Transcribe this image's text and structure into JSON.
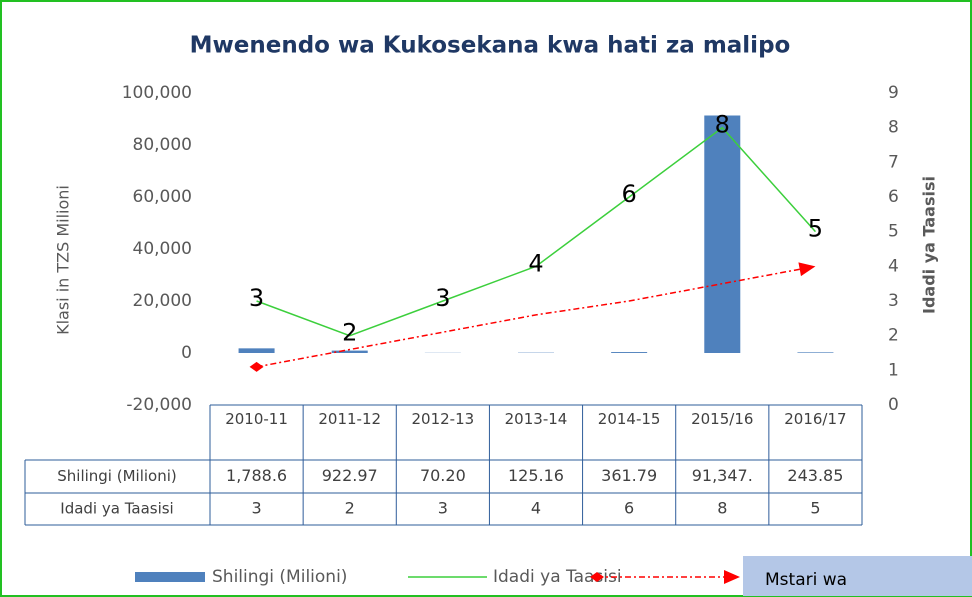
{
  "chart_data": {
    "type": "bar_line",
    "title": "Mwenendo wa Kukosekana kwa hati za malipo",
    "y_label": "Klasi in TZS Milioni",
    "y2_label": "Idadi ya Taasisi",
    "categories": [
      "2010-11",
      "2011-12",
      "2012-13",
      "2013-14",
      "2014-15",
      "2015/16",
      "2016/17"
    ],
    "series": [
      {
        "name": "Shilingi (Milioni)",
        "color": "#4f81bd",
        "type": "bar",
        "values": [
          1788.6,
          922.97,
          70.2,
          125.16,
          361.79,
          91347,
          243.85
        ],
        "value_labels": [
          "1,788.6",
          "922.97",
          "70.20",
          "125.16",
          "361.79",
          "91,347.",
          "243.85"
        ]
      },
      {
        "name": "Idadi ya Taasisi",
        "color": "#3ccf3c",
        "type": "line",
        "axis": "y2",
        "values": [
          3,
          2,
          3,
          4,
          6,
          8,
          5
        ]
      },
      {
        "name": "Mstari wa",
        "color": "#ff0000",
        "type": "trend",
        "axis": "y2",
        "values": [
          1.1,
          1.6,
          2.1,
          2.6,
          3.0,
          3.5,
          4.0
        ]
      }
    ],
    "ylim": [
      -20000,
      100000
    ],
    "yticks": [
      {
        "value": -20000,
        "label": "-20,000"
      },
      0,
      {
        "value": 20000,
        "label": "20,000"
      },
      {
        "value": 40000,
        "label": "40,000"
      },
      {
        "value": 60000,
        "label": "60,000"
      },
      {
        "value": 80000,
        "label": "80,000"
      },
      {
        "value": 100000,
        "label": "100,000"
      }
    ],
    "y2lim": [
      0,
      9
    ],
    "y2ticks": [
      0,
      1,
      2,
      3,
      4,
      5,
      6,
      7,
      8,
      9
    ],
    "grid": false
  }
}
